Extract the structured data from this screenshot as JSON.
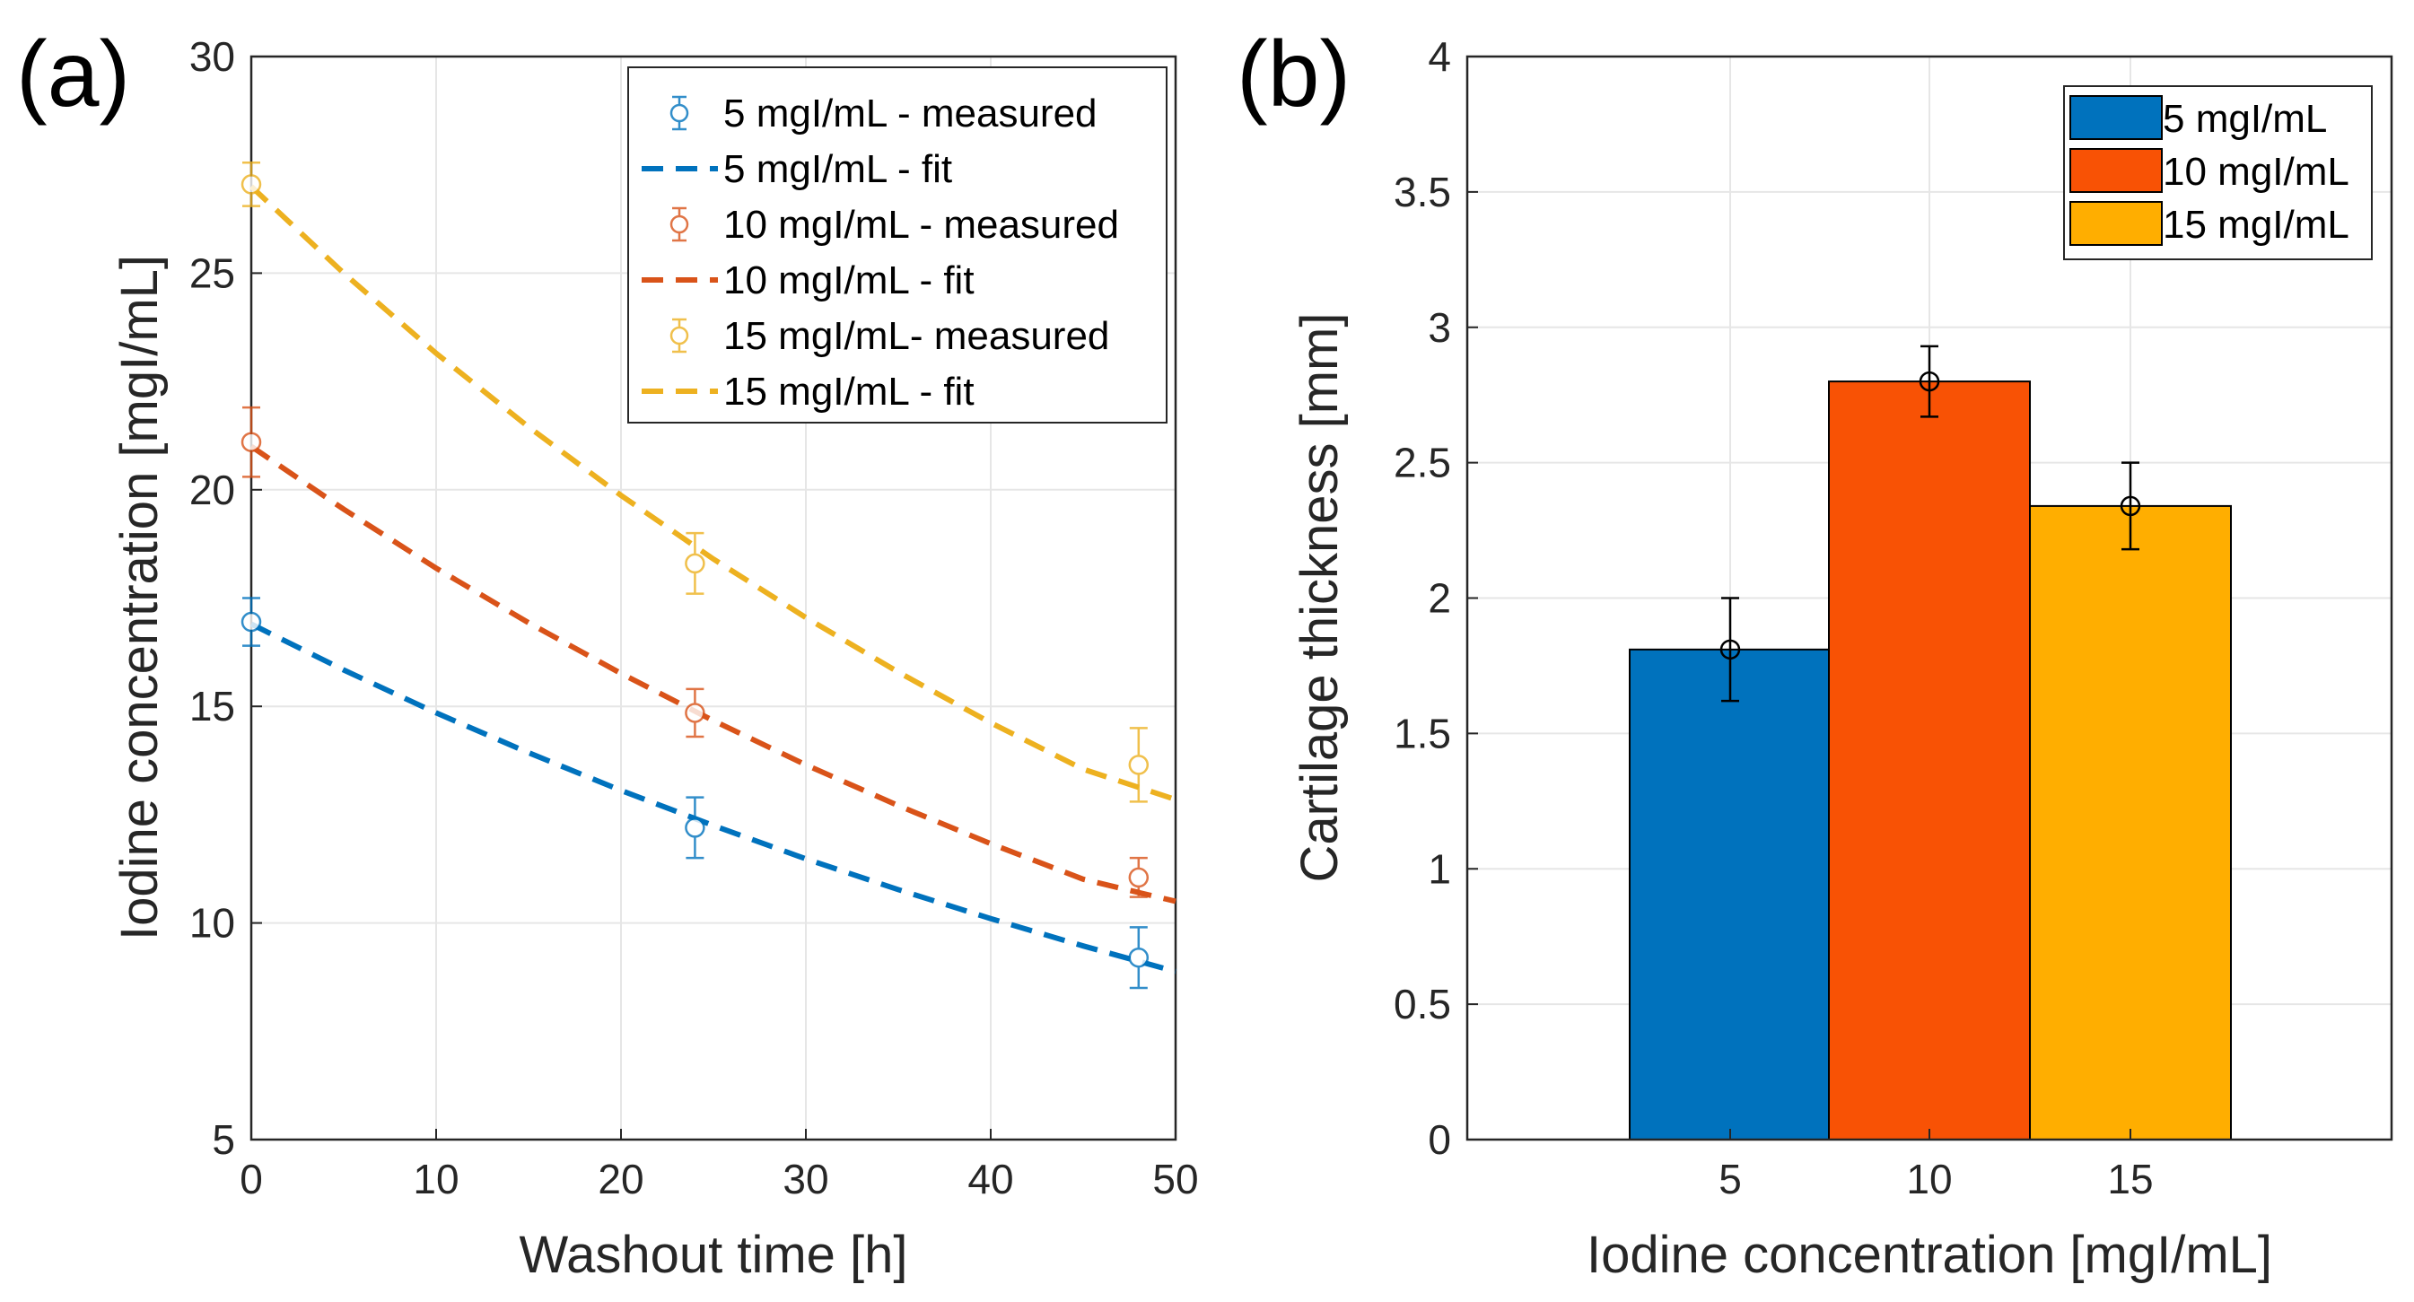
{
  "chart_data": [
    {
      "panel_label": "(a)",
      "type": "line",
      "xlabel": "Washout time [h]",
      "ylabel": "Iodine concentration [mgI/mL]",
      "xlim": [
        0,
        50
      ],
      "ylim": [
        5,
        30
      ],
      "xticks": [
        "0",
        "10",
        "20",
        "30",
        "40",
        "50"
      ],
      "yticks": [
        "5",
        "10",
        "15",
        "20",
        "25",
        "30"
      ],
      "grid": true,
      "legend_position": "top-right",
      "series": [
        {
          "name": "5 mgI/mL - measured",
          "kind": "errorbar",
          "color": "#0072BD",
          "x": [
            0,
            24,
            48
          ],
          "y": [
            16.95,
            12.2,
            9.2
          ],
          "err": [
            0.55,
            0.7,
            0.7
          ]
        },
        {
          "name": "5 mgI/mL - fit",
          "kind": "dashed",
          "color": "#0072BD",
          "x": [
            0,
            5,
            10,
            15,
            20,
            25,
            30,
            35,
            40,
            45,
            50
          ],
          "y": [
            16.9,
            15.84,
            14.85,
            13.93,
            13.06,
            12.25,
            11.48,
            10.77,
            10.1,
            9.47,
            8.88
          ]
        },
        {
          "name": "10 mgI/mL - measured",
          "kind": "errorbar",
          "color": "#D95319",
          "x": [
            0,
            24,
            48
          ],
          "y": [
            21.1,
            14.85,
            11.05
          ],
          "err": [
            0.8,
            0.55,
            0.45
          ]
        },
        {
          "name": "10 mgI/mL - fit",
          "kind": "dashed",
          "color": "#D95319",
          "x": [
            0,
            5,
            10,
            15,
            20,
            25,
            30,
            35,
            40,
            45,
            50
          ],
          "y": [
            21.0,
            19.55,
            18.19,
            16.93,
            15.76,
            14.67,
            13.65,
            12.71,
            11.83,
            11.01,
            10.5
          ]
        },
        {
          "name": "15 mgI/mL- measured",
          "kind": "errorbar",
          "color": "#EDB120",
          "x": [
            0,
            24,
            48
          ],
          "y": [
            27.05,
            18.3,
            13.65
          ],
          "err": [
            0.5,
            0.7,
            0.85
          ]
        },
        {
          "name": "15 mgI/mL - fit",
          "kind": "dashed",
          "color": "#EDB120",
          "x": [
            0,
            5,
            10,
            15,
            20,
            25,
            30,
            35,
            40,
            45,
            50
          ],
          "y": [
            27.0,
            25.0,
            23.15,
            21.45,
            19.87,
            18.4,
            17.05,
            15.79,
            14.62,
            13.55,
            12.85
          ]
        }
      ]
    },
    {
      "panel_label": "(b)",
      "type": "bar",
      "xlabel": "Iodine concentration [mgI/mL]",
      "ylabel": "Cartilage thickness [mm]",
      "categories": [
        "5",
        "10",
        "15"
      ],
      "ylim": [
        0,
        4
      ],
      "yticks": [
        "0",
        "0.5",
        "1",
        "1.5",
        "2",
        "2.5",
        "3",
        "3.5",
        "4"
      ],
      "grid": true,
      "legend_position": "top-right",
      "series": [
        {
          "name": "5 mgI/mL",
          "color": "#0072BD",
          "value": 1.81,
          "err": 0.19
        },
        {
          "name": "10 mgI/mL",
          "color": "#F85205",
          "value": 2.8,
          "err": 0.13
        },
        {
          "name": "15 mgI/mL",
          "color": "#FFAE00",
          "value": 2.34,
          "err": 0.16
        }
      ]
    }
  ]
}
